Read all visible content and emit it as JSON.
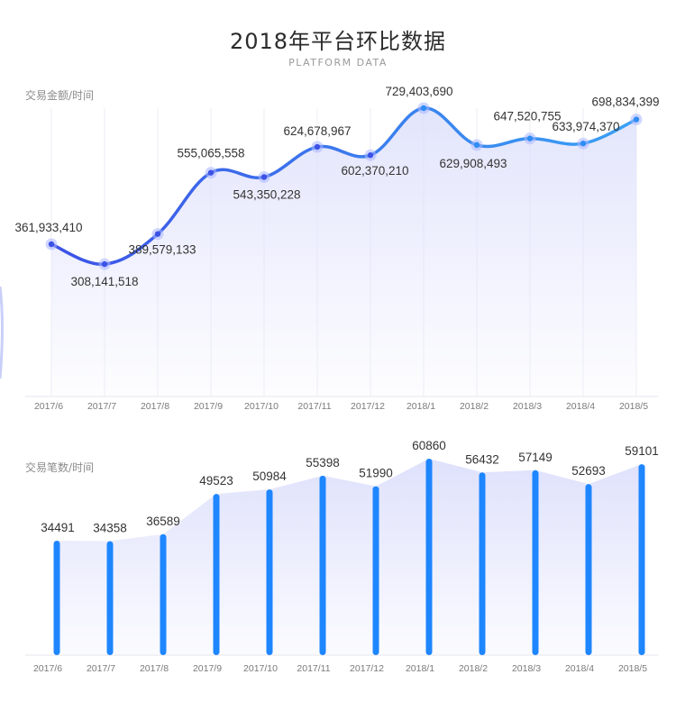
{
  "header": {
    "title": "2018年平台环比数据",
    "subtitle": "PLATFORM DATA"
  },
  "colors": {
    "line_start": "#3c52e6",
    "line_end": "#3aa0f4",
    "bar": "#1e86ff",
    "area": "#d9dcfb",
    "grid": "#eeeef6"
  },
  "chart_data": [
    {
      "type": "line",
      "ylabel": "交易金额/时间",
      "categories": [
        "2017/6",
        "2017/7",
        "2017/8",
        "2017/9",
        "2017/10",
        "2017/11",
        "2017/12",
        "2018/1",
        "2018/2",
        "2018/3",
        "2018/4",
        "2018/5"
      ],
      "values": [
        361933410,
        308141518,
        389579133,
        555065558,
        543350228,
        624678967,
        602370210,
        729403690,
        629908493,
        647520755,
        633974370,
        698834399
      ],
      "labels": [
        "361,933,410",
        "308,141,518",
        "389,579,133",
        "555,065,558",
        "543,350,228",
        "624,678,967",
        "602,370,210",
        "729,403,690",
        "629,908,493",
        "647,520,755",
        "633,974,370",
        "698,834,399"
      ],
      "grid": "vertical"
    },
    {
      "type": "bar",
      "ylabel": "交易笔数/时间",
      "categories": [
        "2017/6",
        "2017/7",
        "2017/8",
        "2017/9",
        "2017/10",
        "2017/11",
        "2017/12",
        "2018/1",
        "2018/2",
        "2018/3",
        "2018/4",
        "2018/5"
      ],
      "values": [
        34491,
        34358,
        36589,
        49523,
        50984,
        55398,
        51990,
        60860,
        56432,
        57149,
        52693,
        59101
      ],
      "labels": [
        "34491",
        "34358",
        "36589",
        "49523",
        "50984",
        "55398",
        "51990",
        "60860",
        "56432",
        "57149",
        "52693",
        "59101"
      ]
    }
  ]
}
